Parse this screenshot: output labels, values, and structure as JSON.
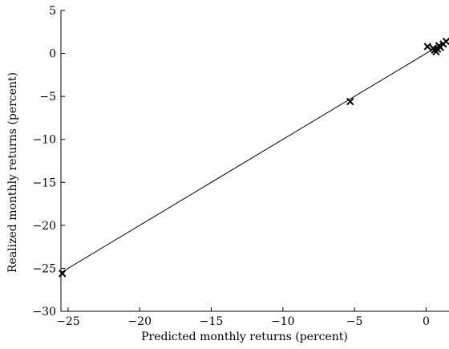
{
  "chart_data": {
    "type": "scatter",
    "title": "",
    "xlabel": "Predicted monthly returns (percent)",
    "ylabel": "Realized monthly returns (percent)",
    "xlim": [
      -25.5,
      1.6
    ],
    "ylim": [
      -30,
      5
    ],
    "x_ticks": [
      -25,
      -20,
      -15,
      -10,
      -5,
      0
    ],
    "y_ticks": [
      -30,
      -25,
      -20,
      -15,
      -10,
      -5,
      0,
      5
    ],
    "x_tick_labels": [
      "−25",
      "−20",
      "−15",
      "−10",
      "−5",
      "0"
    ],
    "y_tick_labels": [
      "−30",
      "−25",
      "−20",
      "−15",
      "−10",
      "−5",
      "0",
      "5"
    ],
    "grid": false,
    "marker": "x",
    "colors": {
      "marker": "#000000",
      "line": "#000000",
      "axes": "#000000"
    },
    "points": [
      {
        "x": -25.4,
        "y": -25.6
      },
      {
        "x": -5.3,
        "y": -5.6
      },
      {
        "x": 0.1,
        "y": 0.8
      },
      {
        "x": 0.5,
        "y": 0.6
      },
      {
        "x": 0.6,
        "y": 0.4
      },
      {
        "x": 0.7,
        "y": 0.2
      },
      {
        "x": 0.8,
        "y": 0.5
      },
      {
        "x": 0.9,
        "y": 0.9
      },
      {
        "x": 1.0,
        "y": 0.7
      },
      {
        "x": 1.2,
        "y": 1.1
      },
      {
        "x": 1.4,
        "y": 1.4
      }
    ],
    "fit_line": {
      "x": [
        -25.5,
        1.6
      ],
      "y": [
        -25.5,
        1.6
      ]
    }
  }
}
